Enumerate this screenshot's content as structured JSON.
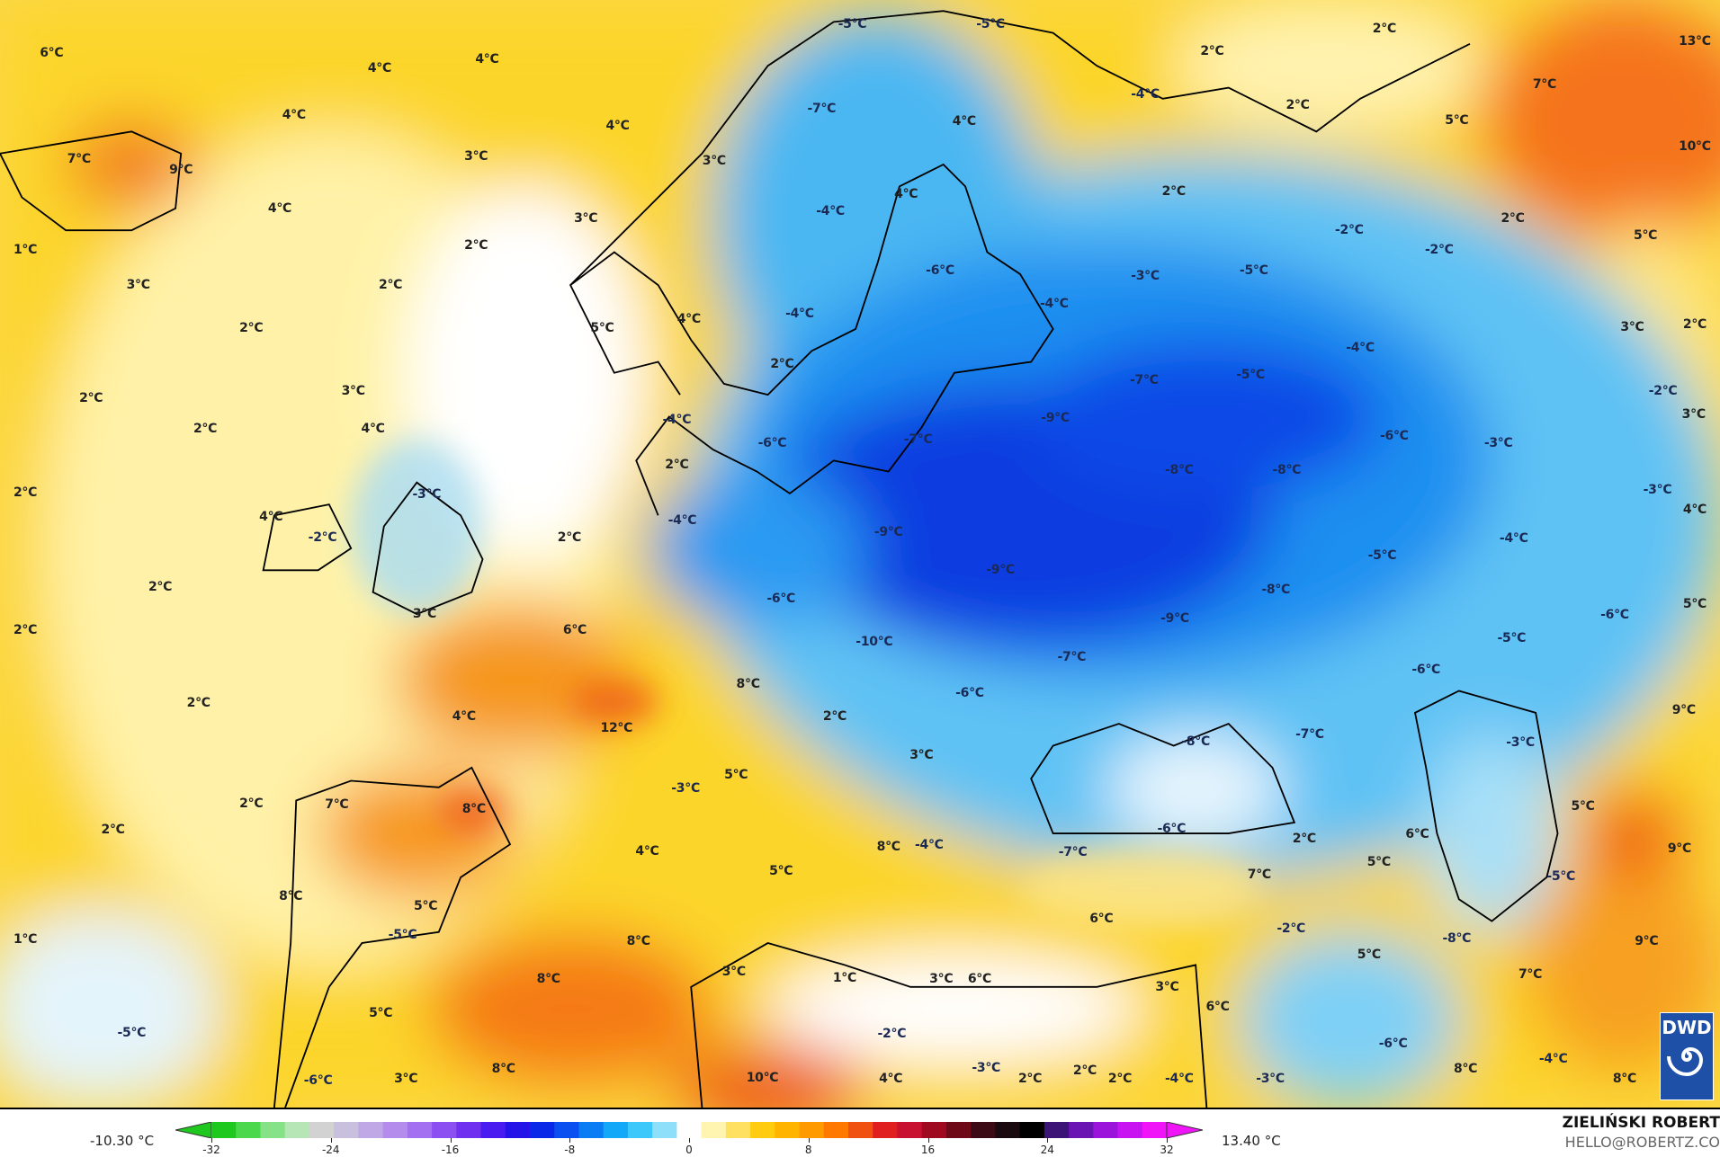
{
  "map": {
    "variable_unit": "°C",
    "colors": {
      "warm_yellow": "#fcd52a",
      "pale_yellow": "#fff2a8",
      "orange": "#f9a21c",
      "red_orange": "#ee5a14",
      "white": "#ffffff",
      "light_blue": "#9edcf6",
      "blue": "#1a8ff0",
      "deep_blue": "#0b3ee0",
      "coast": "#000000"
    },
    "labels": [
      "6°C",
      "4°C",
      "4°C",
      "4°C",
      "4°C",
      "3°C",
      "7°C",
      "9°C",
      "4°C",
      "3°C",
      "1°C",
      "2°C",
      "3°C",
      "2°C",
      "2°C",
      "2°C",
      "2°C",
      "2°C",
      "2°C",
      "2°C",
      "2°C",
      "2°C",
      "2°C",
      "1°C",
      "-5°C",
      "-5°C",
      "-5°C",
      "2°C",
      "13°C",
      "2°C",
      "7°C",
      "-7°C",
      "-4°C",
      "4°C",
      "2°C",
      "5°C",
      "10°C",
      "3°C",
      "4°C",
      "-4°C",
      "2°C",
      "2°C",
      "-2°C",
      "-2°C",
      "5°C",
      "-6°C",
      "-3°C",
      "-5°C",
      "-4°C",
      "-4°C",
      "4°C",
      "5°C",
      "3°C",
      "2°C",
      "2°C",
      "-4°C",
      "-5°C",
      "-7°C",
      "3°C",
      "-2°C",
      "4°C",
      "-4°C",
      "-9°C",
      "3°C",
      "-6°C",
      "-7°C",
      "-6°C",
      "-3°C",
      "2°C",
      "-8°C",
      "-8°C",
      "-3°C",
      "-3°C",
      "4°C",
      "-2°C",
      "-4°C",
      "-9°C",
      "-4°C",
      "4°C",
      "2°C",
      "-5°C",
      "-9°C",
      "-8°C",
      "-6°C",
      "3°C",
      "6°C",
      "-9°C",
      "-6°C",
      "5°C",
      "-5°C",
      "-10°C",
      "-7°C",
      "-6°C",
      "8°C",
      "-6°C",
      "4°C",
      "2°C",
      "9°C",
      "12°C",
      "-7°C",
      "-8°C",
      "-3°C",
      "3°C",
      "5°C",
      "-3°C",
      "7°C",
      "8°C",
      "5°C",
      "-6°C",
      "2°C",
      "6°C",
      "-7°C",
      "4°C",
      "8°C",
      "-4°C",
      "9°C",
      "5°C",
      "7°C",
      "5°C",
      "-5°C",
      "8°C",
      "5°C",
      "6°C",
      "-2°C",
      "-5°C",
      "-8°C",
      "8°C",
      "9°C",
      "5°C",
      "3°C",
      "1°C",
      "8°C",
      "3°C",
      "6°C",
      "7°C",
      "3°C",
      "6°C",
      "5°C",
      "-2°C",
      "-6°C",
      "8°C",
      "8°C",
      "-4°C",
      "-6°C",
      "3°C",
      "10°C",
      "4°C",
      "-3°C",
      "2°C",
      "2°C",
      "2°C",
      "-4°C",
      "-3°C",
      "8°C"
    ]
  },
  "logo": {
    "text": "DWD",
    "icon": "spiral-icon",
    "bg": "#1e50a8"
  },
  "legend": {
    "min_label": "-10.30 °C",
    "max_label": "13.40 °C",
    "ticks": [
      "-32",
      "-24",
      "-16",
      "-8",
      "0",
      "8",
      "16",
      "24",
      "32"
    ],
    "range": [
      -32,
      32
    ],
    "colors": [
      "#1ec81e",
      "#4cd84c",
      "#86e286",
      "#b6e6b6",
      "#d2d2d2",
      "#c8c0dc",
      "#c0a8e6",
      "#b48cec",
      "#a270f0",
      "#8c50f2",
      "#7030f0",
      "#4a1cf0",
      "#2414e8",
      "#0a28e8",
      "#0a50f0",
      "#0a7cf4",
      "#14a8f8",
      "#3cc8fa",
      "#8ee0fa",
      "#ffffff",
      "#fff5b0",
      "#ffe060",
      "#ffcc10",
      "#ffb400",
      "#ff9a00",
      "#ff7800",
      "#f05010",
      "#e02020",
      "#c81030",
      "#a00a20",
      "#6e0a18",
      "#3c0a14",
      "#1a0a10",
      "#000000",
      "#3c1478",
      "#6a14b4",
      "#9a14dc",
      "#c814f0",
      "#f014f8"
    ]
  },
  "credit": {
    "author": "ZIELIŃSKI ROBERT",
    "contact": "HELLO@ROBERTZ.CO"
  }
}
